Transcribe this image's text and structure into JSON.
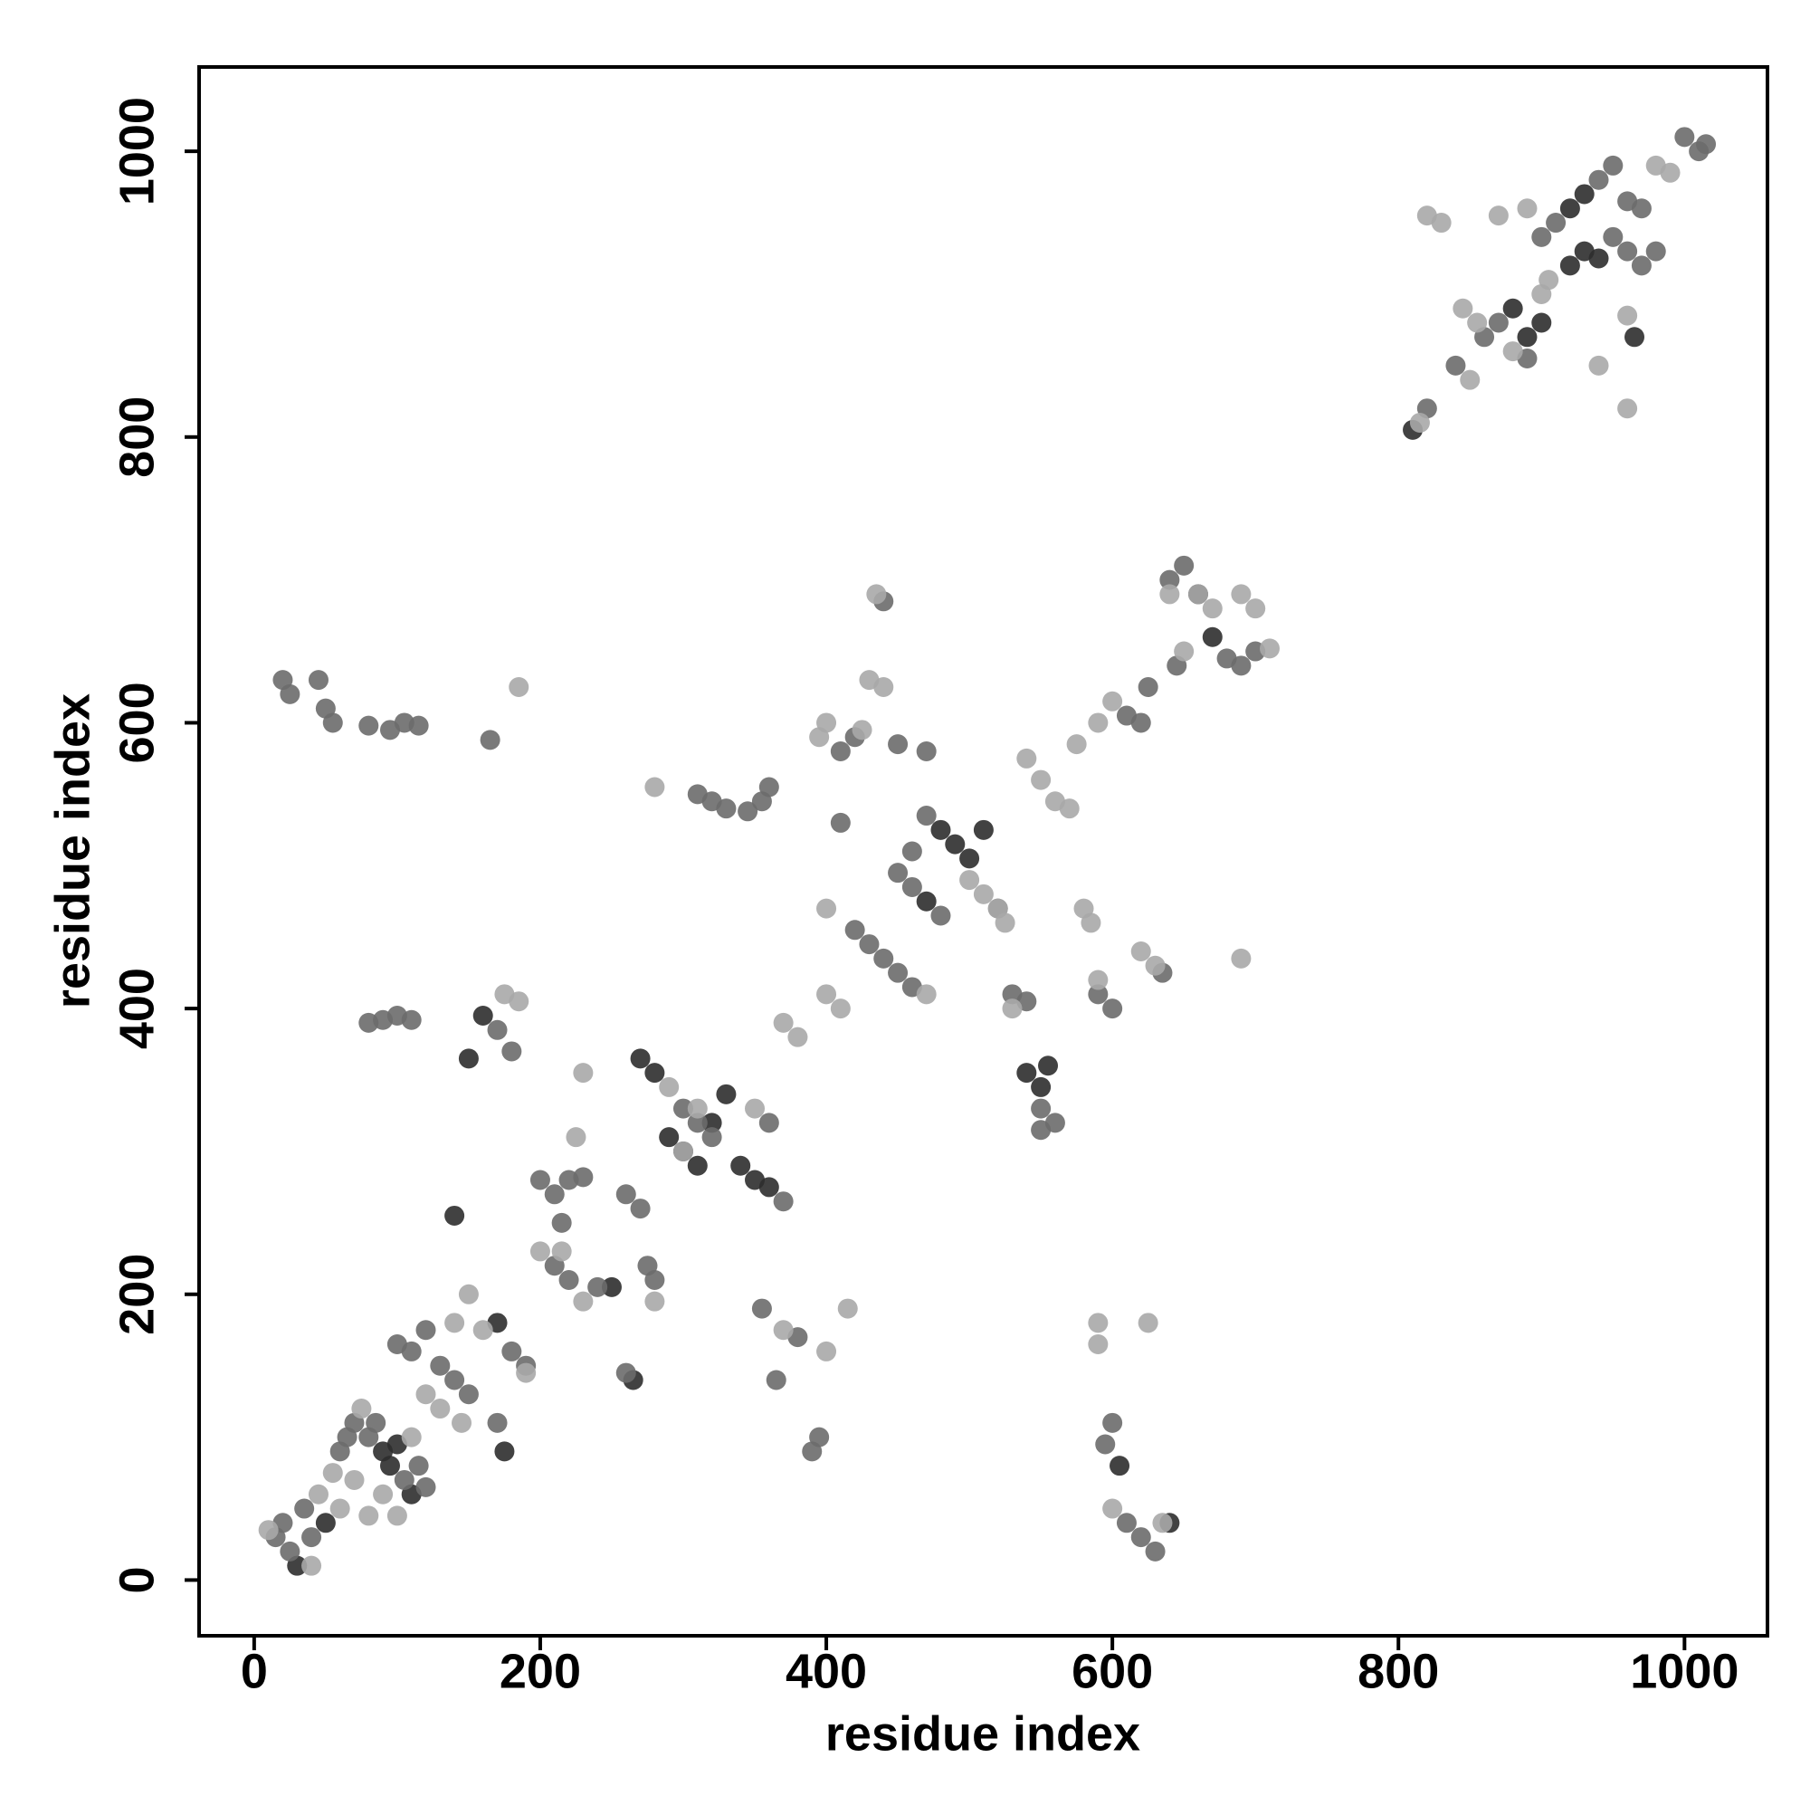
{
  "chart_data": {
    "type": "scatter",
    "xlabel": "residue index",
    "ylabel": "residue index",
    "xlim": [
      -38.5,
      1058
    ],
    "ylim": [
      -39,
      1059
    ],
    "xticks": [
      0,
      200,
      400,
      600,
      800,
      1000
    ],
    "yticks": [
      0,
      200,
      400,
      600,
      800,
      1000
    ],
    "series": [
      {
        "color": "#2e2e2e",
        "x": [
          30,
          50,
          90,
          95,
          100,
          110,
          170,
          175,
          160,
          150,
          290,
          300,
          310,
          320,
          330,
          340,
          350,
          360,
          270,
          265,
          480,
          490,
          470,
          500,
          510,
          540,
          550,
          555,
          605,
          640,
          660,
          670,
          880,
          890,
          900,
          920,
          930,
          940,
          920,
          930,
          965,
          810,
          280,
          140,
          250
        ],
        "y": [
          10,
          40,
          90,
          80,
          95,
          60,
          180,
          90,
          395,
          365,
          310,
          300,
          290,
          320,
          340,
          290,
          280,
          275,
          365,
          140,
          525,
          515,
          475,
          505,
          525,
          355,
          345,
          360,
          80,
          40,
          690,
          660,
          890,
          870,
          880,
          920,
          930,
          925,
          960,
          970,
          870,
          805,
          355,
          255,
          205
        ]
      },
      {
        "color": "#6b6b6b",
        "x": [
          15,
          20,
          25,
          35,
          40,
          60,
          70,
          80,
          85,
          105,
          115,
          120,
          65,
          100,
          110,
          120,
          130,
          140,
          150,
          170,
          180,
          190,
          20,
          25,
          45,
          50,
          55,
          80,
          95,
          105,
          115,
          165,
          80,
          90,
          100,
          110,
          170,
          180,
          200,
          210,
          220,
          230,
          210,
          220,
          215,
          240,
          260,
          270,
          275,
          260,
          280,
          300,
          310,
          320,
          370,
          310,
          320,
          330,
          345,
          355,
          360,
          360,
          380,
          390,
          395,
          355,
          365,
          420,
          430,
          440,
          450,
          460,
          410,
          420,
          410,
          440,
          450,
          460,
          470,
          460,
          450,
          470,
          480,
          520,
          530,
          540,
          550,
          560,
          550,
          610,
          620,
          625,
          590,
          600,
          595,
          600,
          610,
          620,
          630,
          640,
          650,
          680,
          690,
          700,
          645,
          820,
          840,
          860,
          870,
          950,
          960,
          970,
          980,
          900,
          910,
          940,
          950,
          960,
          970,
          1000,
          1010,
          1015,
          890,
          635
        ],
        "y": [
          30,
          40,
          20,
          50,
          30,
          90,
          110,
          100,
          110,
          70,
          80,
          65,
          100,
          165,
          160,
          175,
          150,
          140,
          130,
          110,
          160,
          150,
          630,
          620,
          630,
          610,
          600,
          598,
          595,
          600,
          598,
          588,
          390,
          392,
          395,
          392,
          385,
          370,
          280,
          270,
          280,
          282,
          220,
          210,
          250,
          205,
          145,
          260,
          220,
          270,
          210,
          330,
          320,
          310,
          265,
          550,
          545,
          540,
          538,
          545,
          555,
          320,
          170,
          90,
          100,
          190,
          140,
          455,
          445,
          435,
          425,
          415,
          580,
          590,
          530,
          685,
          495,
          485,
          535,
          510,
          585,
          580,
          465,
          470,
          410,
          405,
          330,
          320,
          315,
          605,
          600,
          625,
          410,
          400,
          95,
          110,
          40,
          30,
          20,
          700,
          710,
          645,
          640,
          650,
          640,
          820,
          850,
          870,
          880,
          940,
          930,
          920,
          930,
          940,
          950,
          980,
          990,
          965,
          960,
          1010,
          1000,
          1005,
          855,
          425
        ]
      },
      {
        "color": "#a8a8a8",
        "x": [
          10,
          45,
          55,
          60,
          70,
          75,
          80,
          40,
          90,
          100,
          110,
          130,
          120,
          145,
          140,
          150,
          160,
          190,
          175,
          185,
          185,
          200,
          215,
          225,
          230,
          230,
          280,
          280,
          290,
          300,
          310,
          350,
          370,
          400,
          410,
          415,
          400,
          370,
          380,
          400,
          470,
          395,
          400,
          425,
          430,
          440,
          435,
          500,
          510,
          520,
          525,
          530,
          570,
          575,
          590,
          600,
          540,
          550,
          560,
          580,
          585,
          590,
          620,
          630,
          690,
          590,
          625,
          600,
          635,
          640,
          650,
          660,
          670,
          690,
          700,
          710,
          815,
          820,
          830,
          850,
          880,
          900,
          905,
          870,
          890,
          940,
          960,
          960,
          980,
          990,
          855,
          845,
          590
        ],
        "y": [
          35,
          60,
          75,
          50,
          70,
          120,
          45,
          10,
          60,
          45,
          100,
          120,
          130,
          110,
          180,
          200,
          175,
          145,
          410,
          405,
          625,
          230,
          230,
          310,
          195,
          355,
          195,
          555,
          345,
          300,
          330,
          330,
          390,
          410,
          400,
          190,
          160,
          175,
          380,
          470,
          410,
          590,
          600,
          595,
          630,
          625,
          690,
          490,
          480,
          470,
          460,
          400,
          540,
          585,
          600,
          615,
          575,
          560,
          545,
          470,
          460,
          420,
          440,
          430,
          435,
          165,
          180,
          50,
          40,
          690,
          650,
          690,
          680,
          690,
          680,
          652,
          810,
          955,
          950,
          840,
          860,
          900,
          910,
          955,
          960,
          850,
          885,
          820,
          990,
          985,
          880,
          890,
          180
        ]
      }
    ]
  }
}
